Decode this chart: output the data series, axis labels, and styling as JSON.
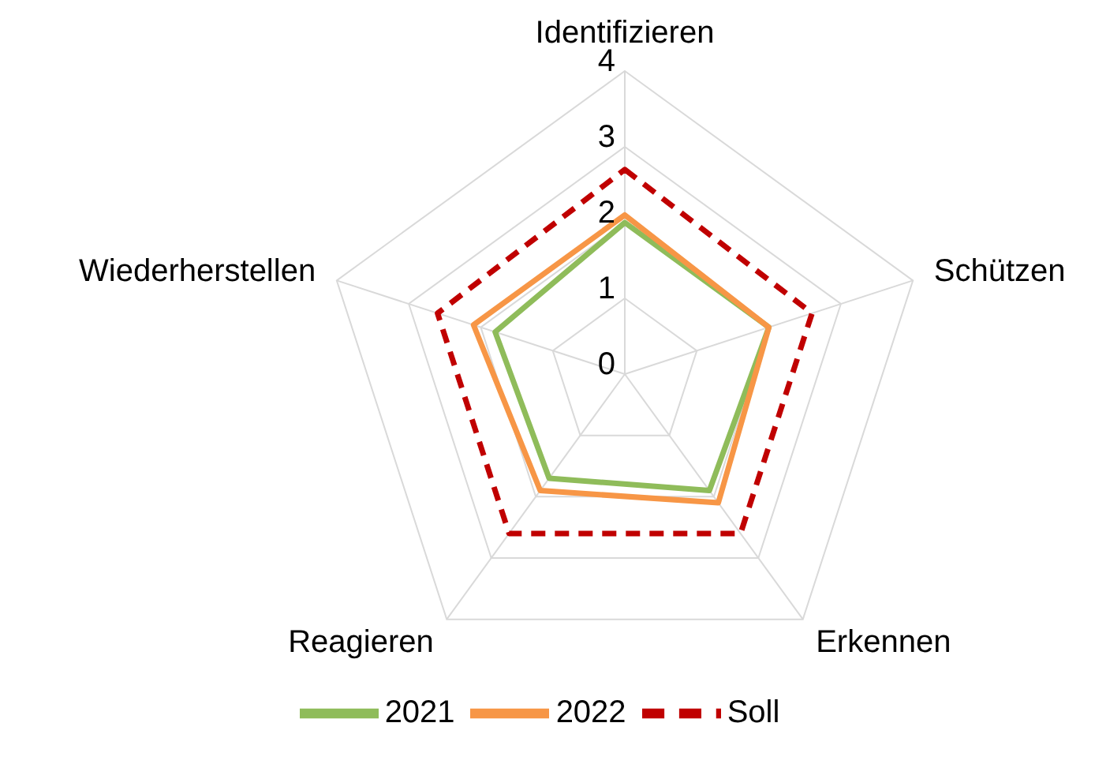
{
  "chart_data": {
    "type": "radar",
    "categories": [
      "Identifizieren",
      "Schützen",
      "Erkennen",
      "Reagieren",
      "Wiederherstellen"
    ],
    "series": [
      {
        "name": "2021",
        "color": "#8fbc5a",
        "values": [
          2.0,
          2.0,
          1.9,
          1.7,
          1.8
        ]
      },
      {
        "name": "2022",
        "color": "#f79646",
        "values": [
          2.1,
          2.0,
          2.1,
          1.9,
          2.1
        ]
      },
      {
        "name": "Soll",
        "color": "#c00000",
        "values": [
          2.7,
          2.6,
          2.6,
          2.6,
          2.6
        ],
        "line_style": "dashed"
      }
    ],
    "ylim": [
      0,
      4
    ],
    "yticks": [
      0,
      1,
      2,
      3,
      4
    ],
    "grid": true,
    "legend": "bottom",
    "marker": "none"
  }
}
